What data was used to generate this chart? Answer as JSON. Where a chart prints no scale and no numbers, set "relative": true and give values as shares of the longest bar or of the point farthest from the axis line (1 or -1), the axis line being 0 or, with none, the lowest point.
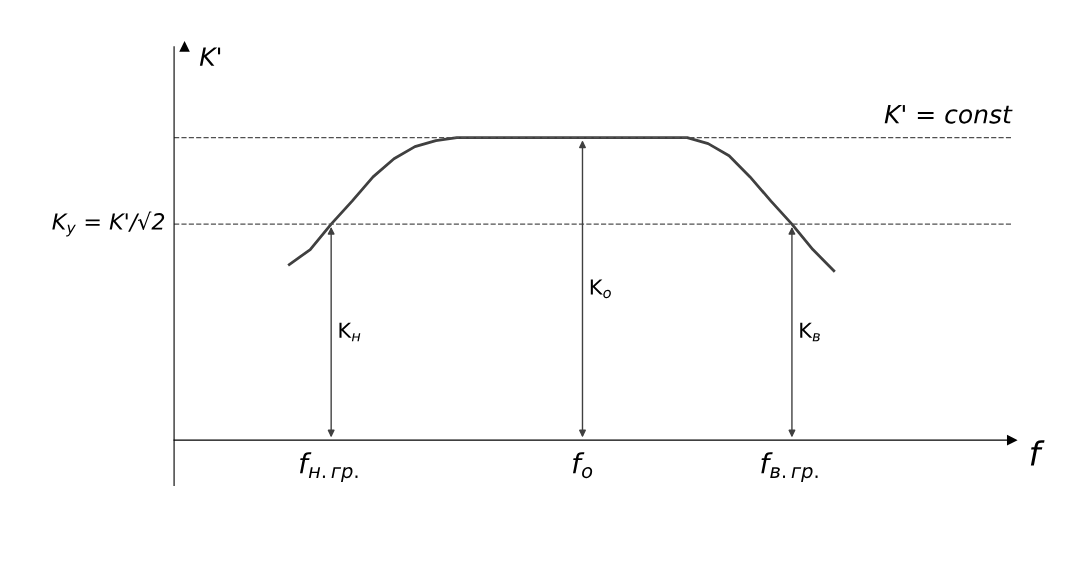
{
  "chart_data": {
    "type": "line",
    "relative": true,
    "xlabel": "f",
    "ylabel": "K'",
    "categories": [
      null,
      null,
      null,
      null,
      null,
      null,
      null,
      "f$_{н.гр.}$",
      null,
      null,
      null,
      null,
      null,
      null,
      null,
      null,
      null,
      null,
      null,
      "f$_{o}$",
      null,
      null,
      null,
      null,
      null,
      null,
      null,
      null,
      null,
      "f$_{в.гр.}$",
      null,
      null,
      null,
      null,
      null,
      null,
      null,
      null,
      null,
      null
    ],
    "series": [
      {
        "color": "#404040",
        "values": [
          null,
          null,
          null,
          null,
          null,
          0.58,
          0.63,
          0.714,
          0.79,
          0.87,
          0.93,
          0.97,
          0.99,
          1,
          1,
          1,
          1,
          1,
          1,
          1,
          1,
          1,
          1,
          1,
          1,
          0.98,
          0.94,
          0.87,
          0.79,
          0.714,
          0.63,
          0.56,
          null,
          null,
          null,
          null,
          null,
          null,
          null,
          null
        ]
      }
    ],
    "ref_lines": [
      {
        "axis": "y",
        "value": 1,
        "label": "K' = const",
        "color": "#505050",
        "line_style": "dashed"
      },
      {
        "axis": "y",
        "value": 0.714,
        "label": "K$_{y}$ = K'/√2",
        "color": "#505050",
        "line_style": "dashed"
      }
    ],
    "annotations": [
      "K$_{н}$",
      "K$_{o}$",
      "K$_{в}$"
    ],
    "grid": false,
    "legend": false,
    "marker": "none",
    "line_style": "solid"
  }
}
